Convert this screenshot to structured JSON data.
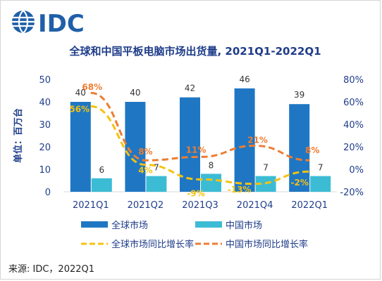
{
  "brand": {
    "logo_text": "IDC"
  },
  "source": "来源: IDC，2022Q1",
  "colors": {
    "global_bar": "#1f77c4",
    "china_bar": "#3cbcd4",
    "global_yoy": "#f5c211",
    "china_yoy": "#ed7d31",
    "bar_label": "#333333",
    "axis_text": "#1f3d8a",
    "title_text": "#1f3d8a",
    "grid": "#d9d9d9"
  },
  "chart_data": {
    "type": "bar",
    "title": "全球和中国平板电脑市场出货量, 2021Q1-2022Q1",
    "ylabel": "单位：百万台",
    "ylim": [
      0,
      50
    ],
    "y_ticks": [
      "0",
      "10",
      "20",
      "30",
      "40",
      "50"
    ],
    "y2lim": [
      -20,
      80
    ],
    "y2_ticks": [
      "-20%",
      "0%",
      "20%",
      "40%",
      "60%",
      "80%"
    ],
    "categories": [
      "2021Q1",
      "2021Q2",
      "2021Q3",
      "2021Q4",
      "2022Q1"
    ],
    "series": [
      {
        "name": "全球市场",
        "kind": "bar",
        "axis": "left",
        "values": [
          40,
          40,
          42,
          46,
          39
        ],
        "labels": [
          "40",
          "40",
          "42",
          "46",
          "39"
        ]
      },
      {
        "name": "中国市场",
        "kind": "bar",
        "axis": "left",
        "values": [
          6,
          7,
          8,
          7,
          7
        ],
        "labels": [
          "6",
          "7",
          "8",
          "7",
          "7"
        ]
      },
      {
        "name": "全球市场同比增长率",
        "kind": "line",
        "axis": "right",
        "dash": "dashed",
        "values": [
          56,
          4,
          -9,
          -13,
          -2
        ],
        "labels": [
          "56%",
          "4%",
          "-9%",
          "-13%",
          "-2%"
        ]
      },
      {
        "name": "中国市场同比增长率",
        "kind": "line",
        "axis": "right",
        "dash": "dashed",
        "values": [
          68,
          8,
          11,
          21,
          8
        ],
        "labels": [
          "68%",
          "8%",
          "11%",
          "21%",
          "8%"
        ]
      }
    ],
    "legend_position": "bottom",
    "grid": false
  }
}
